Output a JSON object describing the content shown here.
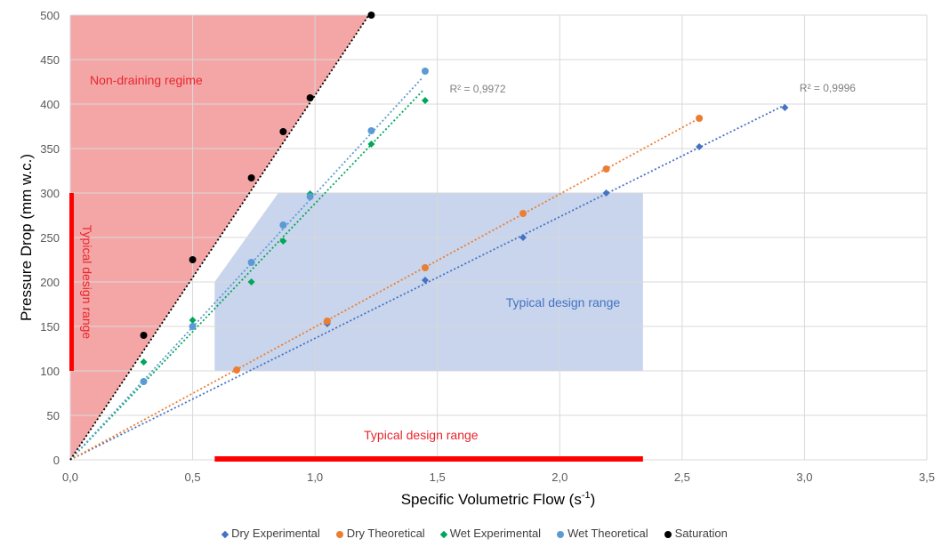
{
  "chart_data": {
    "type": "scatter",
    "xlabel_main": "Specific Volumetric Flow (s",
    "xlabel_sup": "-1",
    "xlabel_end": ")",
    "ylabel": "Pressure Drop (mm w.c.)",
    "xlim": [
      0,
      3.5
    ],
    "ylim": [
      0,
      500
    ],
    "xticks": [
      0,
      0.5,
      1.0,
      1.5,
      2.0,
      2.5,
      3.0,
      3.5
    ],
    "xtick_labels": [
      "0,0",
      "0,5",
      "1,0",
      "1,5",
      "2,0",
      "2,5",
      "3,0",
      "3,5"
    ],
    "yticks": [
      0,
      50,
      100,
      150,
      200,
      250,
      300,
      350,
      400,
      450,
      500
    ],
    "ytick_labels": [
      "0",
      "50",
      "100",
      "150",
      "200",
      "250",
      "300",
      "350",
      "400",
      "450",
      "500"
    ],
    "series": [
      {
        "name": "Dry Experimental",
        "marker": "diamond",
        "color": "#4472c4",
        "x": [
          1.05,
          1.45,
          1.85,
          2.19,
          2.57,
          2.92
        ],
        "y": [
          153,
          202,
          250,
          300,
          352,
          396
        ],
        "trendline": {
          "x": [
            0,
            2.92
          ],
          "y": [
            0,
            399
          ]
        }
      },
      {
        "name": "Dry Theoretical",
        "marker": "circle",
        "color": "#ed7d31",
        "x": [
          0.68,
          1.05,
          1.45,
          1.85,
          2.19,
          2.57
        ],
        "y": [
          101,
          156,
          216,
          277,
          327,
          384
        ],
        "trendline": {
          "x": [
            0,
            2.57
          ],
          "y": [
            0,
            384
          ]
        }
      },
      {
        "name": "Wet Experimental",
        "marker": "diamond",
        "color": "#00a65a",
        "x": [
          0.3,
          0.5,
          0.74,
          0.87,
          0.98,
          1.23,
          1.45
        ],
        "y": [
          110,
          157,
          200,
          246,
          299,
          355,
          404
        ],
        "trendline": {
          "x": [
            0,
            1.44
          ],
          "y": [
            0,
            415
          ]
        }
      },
      {
        "name": "Wet Theoretical",
        "marker": "circle",
        "color": "#5b9bd5",
        "x": [
          0.3,
          0.5,
          0.74,
          0.87,
          0.98,
          1.23,
          1.45
        ],
        "y": [
          88,
          150,
          222,
          264,
          296,
          370,
          437
        ],
        "trendline": {
          "x": [
            0,
            1.44
          ],
          "y": [
            0,
            430
          ]
        }
      },
      {
        "name": "Saturation",
        "marker": "circle",
        "color": "#000000",
        "x": [
          0.3,
          0.5,
          0.74,
          0.87,
          0.98,
          1.23
        ],
        "y": [
          140,
          225,
          317,
          369,
          407,
          500
        ],
        "trendline": {
          "x": [
            0,
            1.22
          ],
          "y": [
            0,
            500
          ]
        }
      }
    ],
    "annotations": [
      {
        "text": "R² = 0,9972",
        "x": 1.55,
        "y": 413,
        "color": "#808080"
      },
      {
        "text": "R² = 0,9996",
        "x": 2.98,
        "y": 414,
        "color": "#808080"
      },
      {
        "text": "Non-draining regime",
        "x": 0.08,
        "y": 422,
        "color": "#e8262e"
      },
      {
        "text": "Typical design range",
        "x": 1.78,
        "y": 172,
        "color": "#4472c4"
      },
      {
        "text": "Typical design range",
        "x": 1.2,
        "y": 23,
        "color": "#e8262e"
      },
      {
        "text": "Typical design range",
        "x": 0.05,
        "y": 200,
        "color": "#e8262e",
        "rotation": 90
      }
    ],
    "regions": {
      "non_draining": {
        "color": "#f4a6a6",
        "polygon": [
          [
            0,
            0
          ],
          [
            0,
            500
          ],
          [
            1.22,
            500
          ]
        ]
      },
      "design_range": {
        "color": "#c8d5ec",
        "polygon": [
          [
            0.59,
            100
          ],
          [
            0.59,
            200
          ],
          [
            0.85,
            300
          ],
          [
            2.34,
            300
          ],
          [
            2.34,
            100
          ]
        ]
      },
      "x_design_bar": {
        "color": "#ff0000",
        "x": [
          0.59,
          2.34
        ]
      },
      "y_design_bar": {
        "color": "#ff0000",
        "y": [
          100,
          300
        ]
      }
    }
  }
}
